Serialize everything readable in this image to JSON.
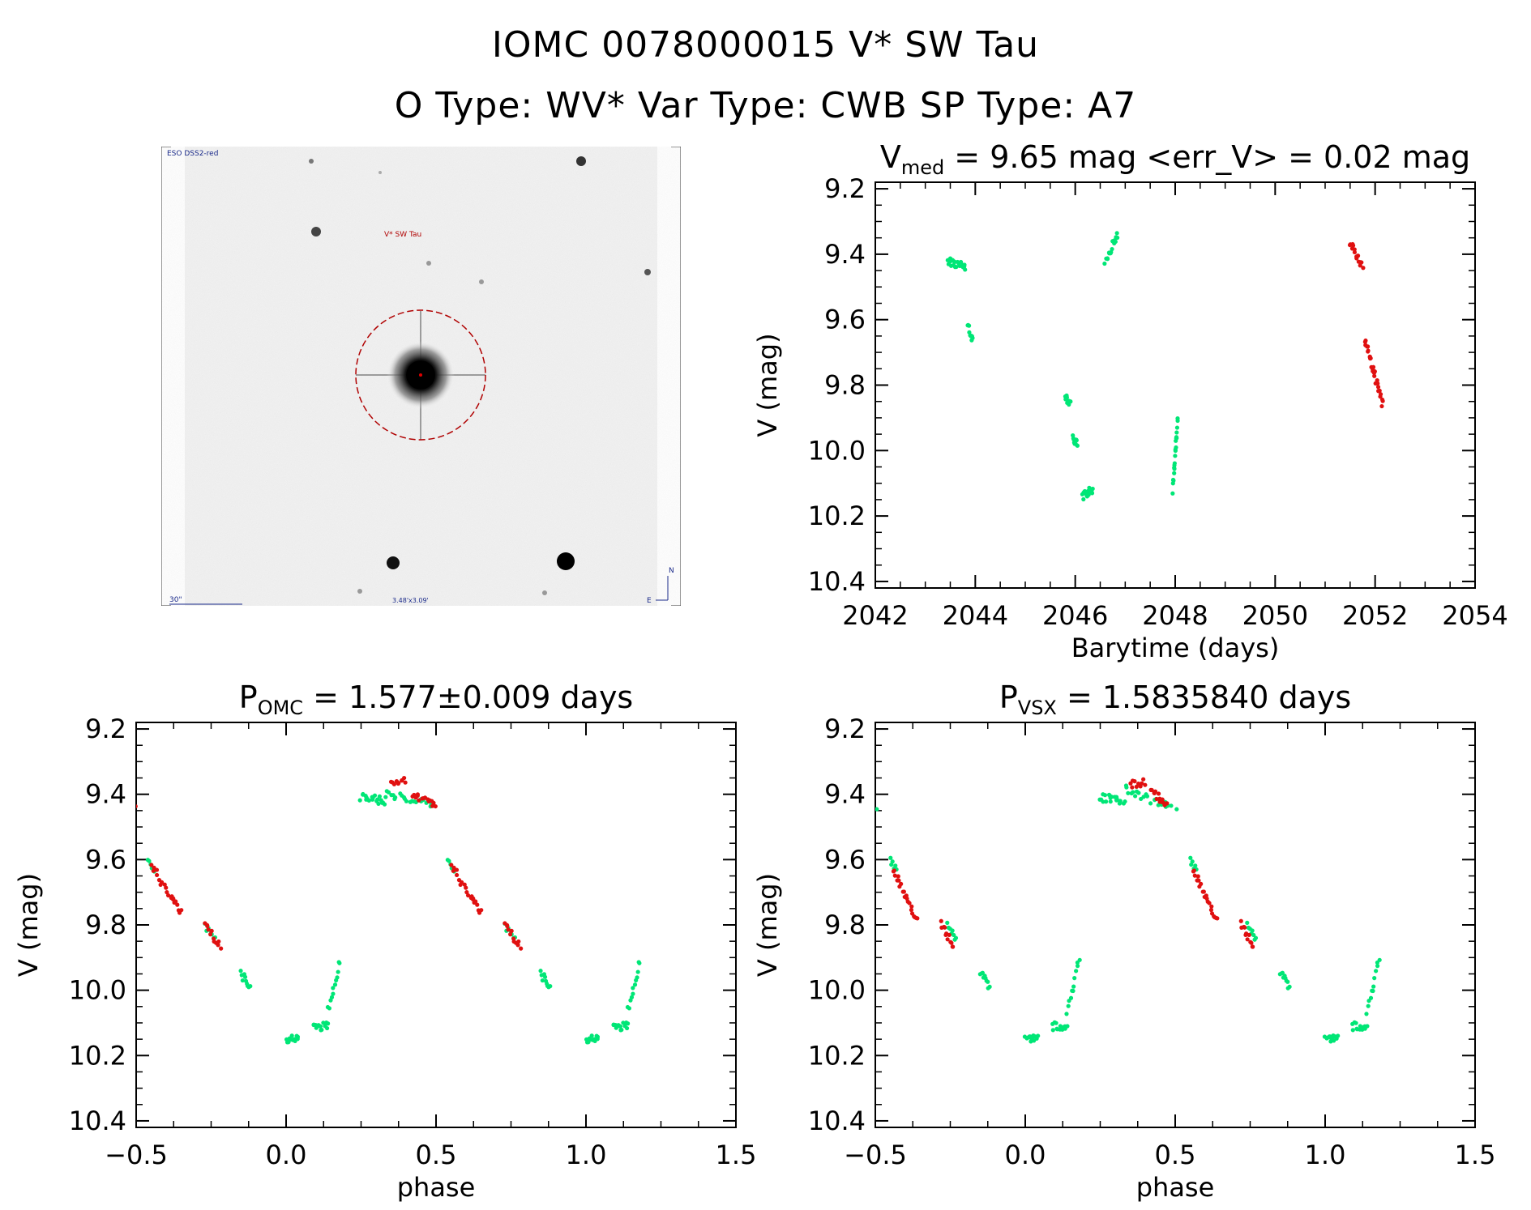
{
  "header": {
    "title_line1": "IOMC 0078000015   V* SW Tau",
    "title_line2": "O Type: WV*  Var Type: CWB  SP Type: A7"
  },
  "finder": {
    "survey_label": "ESO DSS2-red",
    "target_label": "V* SW Tau",
    "scale_label": "30\"",
    "size_label": "3.48'x3.09'",
    "north_label": "N",
    "east_label": "E"
  },
  "colors": {
    "green": "#00e676",
    "red": "#e01010",
    "circle": "#b00000",
    "axis": "#000000"
  },
  "chart_data": [
    {
      "type": "scatter",
      "title_main": "V",
      "title_sub": "med",
      "title_rest": " = 9.65 mag <err_V> = 0.02 mag",
      "xlabel": "Barytime (days)",
      "ylabel": "V (mag)",
      "xlim": [
        2042,
        2054
      ],
      "ylim": [
        10.42,
        9.18
      ],
      "xticks": [
        2042,
        2044,
        2046,
        2048,
        2050,
        2052,
        2054
      ],
      "yticks": [
        9.2,
        9.4,
        9.6,
        9.8,
        10.0,
        10.2,
        10.4
      ],
      "series": [
        {
          "color": "green",
          "segments": [
            [
              2043.45,
              9.42,
              2043.8,
              9.44,
              22
            ],
            [
              2043.85,
              9.62,
              2043.95,
              9.66,
              10
            ],
            [
              2045.8,
              9.83,
              2045.9,
              9.86,
              10
            ],
            [
              2045.95,
              9.95,
              2046.05,
              9.99,
              10
            ],
            [
              2046.15,
              10.14,
              2046.35,
              10.12,
              18
            ],
            [
              2046.6,
              9.42,
              2046.85,
              9.34,
              16
            ],
            [
              2047.95,
              10.12,
              2048.05,
              9.91,
              22
            ]
          ]
        },
        {
          "color": "red",
          "segments": [
            [
              2051.5,
              9.36,
              2051.75,
              9.44,
              16
            ],
            [
              2051.8,
              9.66,
              2052.15,
              9.86,
              30
            ]
          ]
        }
      ]
    },
    {
      "type": "scatter",
      "title_main": "P",
      "title_sub": "OMC",
      "title_rest": " = 1.577±0.009 days",
      "xlabel": "phase",
      "ylabel": "V (mag)",
      "xlim": [
        -0.5,
        1.5
      ],
      "ylim": [
        10.42,
        9.18
      ],
      "xticks": [
        -0.5,
        0.0,
        0.5,
        1.0,
        1.5
      ],
      "xticklabels": [
        "-0.5",
        "0.0",
        "0.5",
        "1.0",
        "1.5"
      ],
      "yticks": [
        9.2,
        9.4,
        9.6,
        9.8,
        10.0,
        10.2,
        10.4
      ],
      "series": [
        {
          "color": "green",
          "segments": [
            [
              0.25,
              9.41,
              0.33,
              9.42,
              20
            ],
            [
              0.33,
              9.4,
              0.49,
              9.43,
              24
            ],
            [
              0.54,
              9.6,
              0.56,
              9.63,
              6
            ],
            [
              0.73,
              9.8,
              0.77,
              9.85,
              8
            ],
            [
              0.85,
              9.95,
              0.88,
              9.99,
              10
            ],
            [
              1.0,
              10.15,
              1.04,
              10.15,
              14
            ],
            [
              1.09,
              10.11,
              1.14,
              10.11,
              14
            ],
            [
              1.14,
              10.06,
              1.18,
              9.91,
              12
            ]
          ]
        },
        {
          "color": "red",
          "segments": [
            [
              0.35,
              9.37,
              0.4,
              9.36,
              10
            ],
            [
              0.42,
              9.4,
              0.5,
              9.44,
              16
            ],
            [
              0.55,
              9.62,
              0.62,
              9.72,
              14
            ],
            [
              0.62,
              9.72,
              0.65,
              9.76,
              8
            ],
            [
              0.73,
              9.79,
              0.78,
              9.87,
              12
            ]
          ]
        }
      ],
      "wrap": true
    },
    {
      "type": "scatter",
      "title_main": "P",
      "title_sub": "VSX",
      "title_rest": " = 1.5835840 days",
      "xlabel": "phase",
      "ylabel": "V (mag)",
      "xlim": [
        -0.5,
        1.5
      ],
      "ylim": [
        10.42,
        9.18
      ],
      "xticks": [
        -0.5,
        0.0,
        0.5,
        1.0,
        1.5
      ],
      "xticklabels": [
        "-0.5",
        "0.0",
        "0.5",
        "1.0",
        "1.5"
      ],
      "yticks": [
        9.2,
        9.4,
        9.6,
        9.8,
        10.0,
        10.2,
        10.4
      ],
      "series": [
        {
          "color": "green",
          "segments": [
            [
              0.25,
              9.41,
              0.33,
              9.42,
              20
            ],
            [
              0.33,
              9.38,
              0.5,
              9.45,
              24
            ],
            [
              0.55,
              9.6,
              0.57,
              9.63,
              6
            ],
            [
              0.74,
              9.8,
              0.77,
              9.85,
              8
            ],
            [
              0.85,
              9.95,
              0.88,
              9.99,
              10
            ],
            [
              1.0,
              10.15,
              1.04,
              10.15,
              14
            ],
            [
              1.09,
              10.11,
              1.14,
              10.11,
              14
            ],
            [
              1.14,
              10.06,
              1.18,
              9.91,
              12
            ]
          ]
        },
        {
          "color": "red",
          "segments": [
            [
              0.35,
              9.37,
              0.4,
              9.36,
              10
            ],
            [
              0.42,
              9.39,
              0.47,
              9.43,
              14
            ],
            [
              0.56,
              9.63,
              0.62,
              9.75,
              16
            ],
            [
              0.62,
              9.75,
              0.64,
              9.78,
              6
            ],
            [
              0.72,
              9.79,
              0.76,
              9.87,
              12
            ]
          ]
        }
      ],
      "wrap": true
    }
  ]
}
